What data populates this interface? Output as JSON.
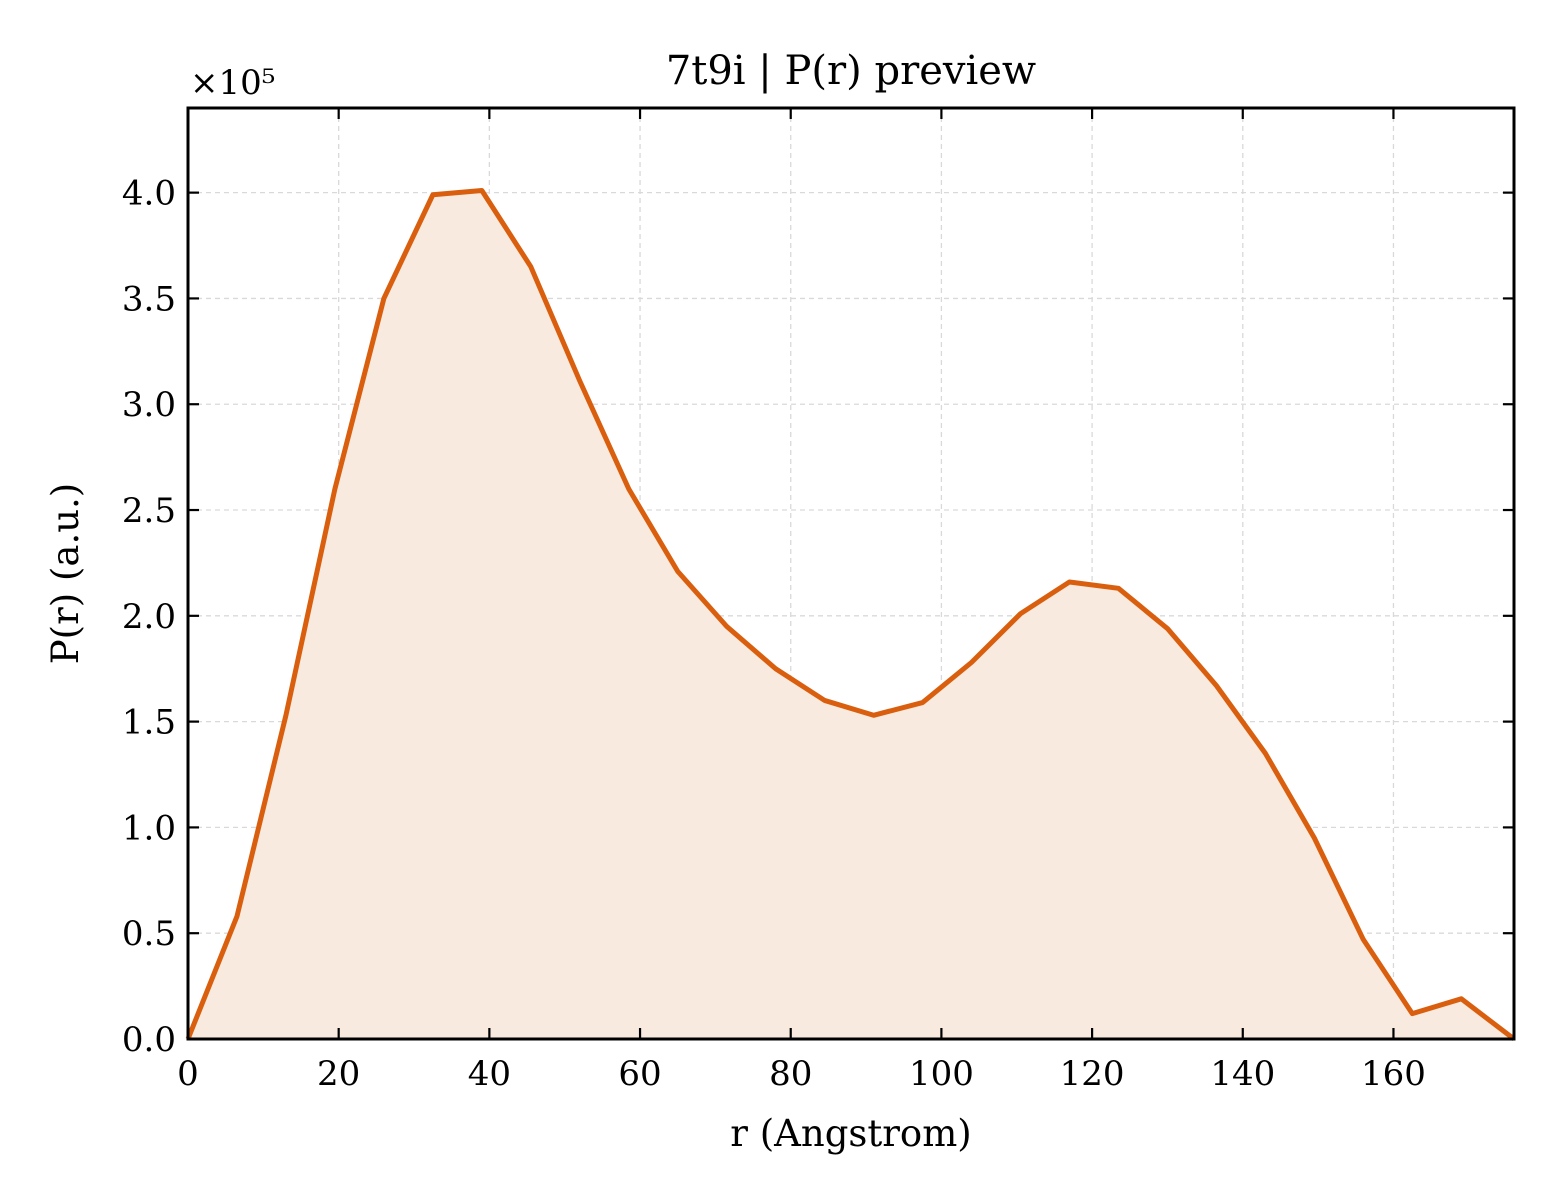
{
  "chart_data": {
    "type": "area",
    "title": "7t9i | P(r) preview",
    "xlabel": "r (Angstrom)",
    "ylabel": "P(r) (a.u.)",
    "y_multiplier_label": "×10⁵",
    "xlim": [
      0,
      176
    ],
    "ylim": [
      0,
      4.4
    ],
    "x_ticks": [
      0,
      20,
      40,
      60,
      80,
      100,
      120,
      140,
      160
    ],
    "y_ticks": [
      0.0,
      0.5,
      1.0,
      1.5,
      2.0,
      2.5,
      3.0,
      3.5,
      4.0
    ],
    "x_tick_labels": [
      "0",
      "20",
      "40",
      "60",
      "80",
      "100",
      "120",
      "140",
      "160"
    ],
    "y_tick_labels": [
      "0.0",
      "0.5",
      "1.0",
      "1.5",
      "2.0",
      "2.5",
      "3.0",
      "3.5",
      "4.0"
    ],
    "grid": true,
    "line_color": "#d95f0e",
    "fill_color": "#f9eadf",
    "series": [
      {
        "x": [
          0,
          6.5,
          13.0,
          19.5,
          26.0,
          32.5,
          39.0,
          45.5,
          52.0,
          58.5,
          65.0,
          71.5,
          78.0,
          84.5,
          91.0,
          97.5,
          104.0,
          110.5,
          117.0,
          123.5,
          130.0,
          136.5,
          143.0,
          149.5,
          156.0,
          162.5,
          169.0,
          176.0
        ],
        "y": [
          0.0,
          0.58,
          1.53,
          2.6,
          3.5,
          3.99,
          4.01,
          3.65,
          3.11,
          2.6,
          2.21,
          1.95,
          1.75,
          1.6,
          1.53,
          1.59,
          1.78,
          2.01,
          2.16,
          2.13,
          1.94,
          1.67,
          1.35,
          0.95,
          0.47,
          0.12,
          0.19,
          0.0
        ]
      }
    ]
  }
}
